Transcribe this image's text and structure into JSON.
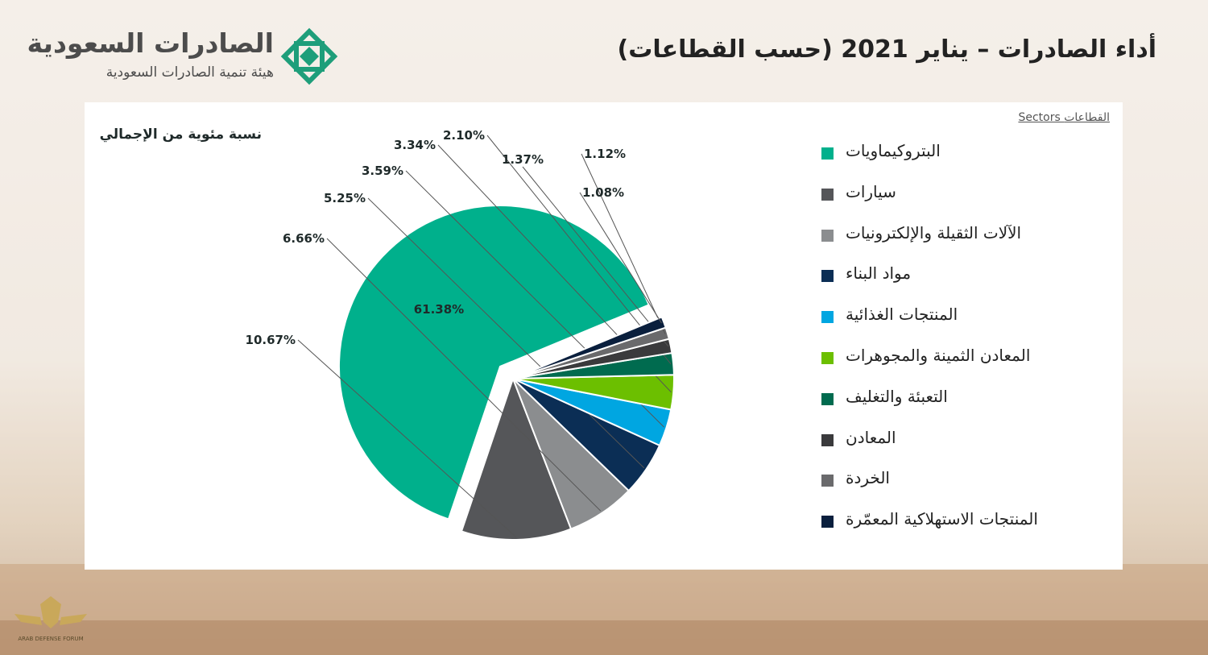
{
  "header": {
    "brand_title": "الصادرات السعودية",
    "brand_subtitle": "هيئة تنمية الصادرات السعودية",
    "page_title": "أداء الصادرات – يناير 2021 (حسب القطاعات)"
  },
  "watermark": {
    "text": "ARAB DEFENSE FORUM"
  },
  "colors": {
    "accent": "#00b08c",
    "leader": "#555555"
  },
  "chart_data": {
    "type": "pie",
    "title": "نسبة مئوية من الإجمالي",
    "legend_title": "Sectors القطاعات",
    "legend_placement": "right",
    "start_angle_deg": 22.5,
    "direction": "counterclockwise",
    "exploded_index": 0,
    "slices": [
      {
        "label": "البتروكيماويات",
        "value": 61.38,
        "value_label": "61.38%",
        "color": "#00b08c"
      },
      {
        "label": "سيارات",
        "value": 10.67,
        "value_label": "10.67%",
        "color": "#555659"
      },
      {
        "label": "الآلات الثقيلة والإلكترونيات",
        "value": 6.66,
        "value_label": "6.66%",
        "color": "#8b8d8f"
      },
      {
        "label": "مواد البناء",
        "value": 5.25,
        "value_label": "5.25%",
        "color": "#0b2e55"
      },
      {
        "label": "المنتجات الغذائية",
        "value": 3.59,
        "value_label": "3.59%",
        "color": "#00a6e1"
      },
      {
        "label": "المعادن الثمينة والمجوهرات",
        "value": 3.34,
        "value_label": "3.34%",
        "color": "#6cbf00"
      },
      {
        "label": "التعبئة والتغليف",
        "value": 2.1,
        "value_label": "2.10%",
        "color": "#006b4f"
      },
      {
        "label": "المعادن",
        "value": 1.37,
        "value_label": "1.37%",
        "color": "#3a3a3c"
      },
      {
        "label": "الخردة",
        "value": 1.12,
        "value_label": "1.12%",
        "color": "#6a6a6c"
      },
      {
        "label": "المنتجات الاستهلاكية المعمّرة",
        "value": 1.08,
        "value_label": "1.08%",
        "color": "#0a1f3d"
      }
    ]
  }
}
